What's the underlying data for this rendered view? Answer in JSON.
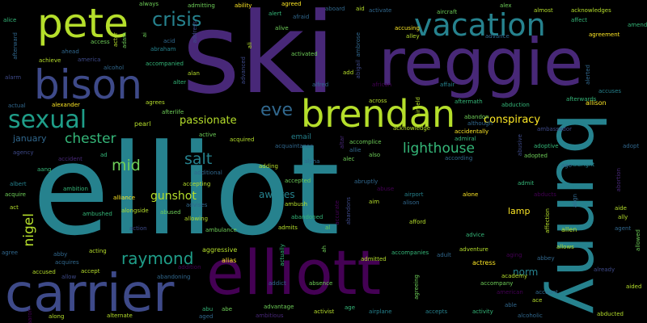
{
  "colors": {
    "background": "#000000",
    "palette": [
      "#440154",
      "#482878",
      "#3e4a89",
      "#31688e",
      "#26828e",
      "#1f9e89",
      "#35b779",
      "#6ece58",
      "#b5de2b",
      "#fde725"
    ]
  },
  "words": {
    "elliot": "elliot",
    "ski": "ski",
    "reggie": "reggie",
    "bunny": "bunny",
    "elliott": "elliott",
    "carrier": "carrier",
    "bison": "bison",
    "pete": "pete",
    "brendan": "brendan",
    "vacation": "vacation",
    "sexual": "sexual",
    "crisis": "crisis",
    "eve": "eve",
    "raymond": "raymond",
    "lighthouse": "lighthouse",
    "chester": "chester",
    "salt": "salt",
    "mid": "mid",
    "nigel": "nigel",
    "conspiracy": "conspiracy",
    "passionate": "passionate",
    "gunshot": "gunshot",
    "january": "january",
    "awakes": "awakes",
    "lamp": "lamp",
    "norm": "norm",
    "alice": "alice",
    "access": "access",
    "ahead": "ahead",
    "achieve": "achieve",
    "alarm": "alarm",
    "actual": "actual",
    "alexander": "alexander",
    "agrees": "agrees",
    "afterlife": "afterlife",
    "pearl": "pearl",
    "active": "active",
    "acquired": "acquired",
    "email": "email",
    "acquaintance": "acquaintance",
    "accomplice": "accomplice",
    "allie": "allie",
    "alec": "alec",
    "alpha": "alpha",
    "agency": "agency",
    "accident": "accident",
    "ad": "ad",
    "additional": "additional",
    "adding": "adding",
    "accepted": "accepted",
    "aang": "aang",
    "albert": "albert",
    "acquire": "acquire",
    "act": "act",
    "ambition": "ambition",
    "alliance": "alliance",
    "alongside": "alongside",
    "ambushed": "ambushed",
    "accepting": "accepting",
    "advises": "advises",
    "abused": "abused",
    "allowing": "allowing",
    "action": "action",
    "ambulance": "ambulance",
    "admits": "admits",
    "al": "al",
    "abandoned": "abandoned",
    "ambush": "ambush",
    "agree": "agree",
    "abby": "abby",
    "acting": "acting",
    "acquires": "acquires",
    "accused": "accused",
    "allow": "allow",
    "accept": "accept",
    "addition": "addition",
    "abandoning": "abandoning",
    "aggressive": "aggressive",
    "alias": "alias",
    "addict": "addict",
    "absence": "absence",
    "aboard": "aboard",
    "aid": "aid",
    "activate": "activate",
    "aircraft": "aircraft",
    "alex": "alex",
    "almost": "almost",
    "acknowledges": "acknowledges",
    "affect": "affect",
    "amends": "amends",
    "agreement": "agreement",
    "always": "always",
    "admitting": "admitting",
    "ability": "ability",
    "agreed": "agreed",
    "alert": "alert",
    "afraid": "afraid",
    "alive": "alive",
    "acid": "acid",
    "abraham": "abraham",
    "alan": "alan",
    "alter": "alter",
    "accompanied": "accompanied",
    "america": "america",
    "alcohol": "alcohol",
    "activated": "activated",
    "alfred": "alfred",
    "add": "add",
    "accusing": "accusing",
    "alley": "alley",
    "advance": "advance",
    "african": "african",
    "affair": "affair",
    "aftermath": "aftermath",
    "abduction": "abduction",
    "accuses": "accuses",
    "allison": "allison",
    "across": "across",
    "acknowledge": "acknowledge",
    "abandon": "abandon",
    "although": "although",
    "accidentally": "accidentally",
    "according": "according",
    "admiral": "admiral",
    "ambassador": "ambassador",
    "adoptive": "adoptive",
    "adopt": "adopt",
    "adopted": "adopted",
    "also": "also",
    "abuse": "abuse",
    "abruptly": "abruptly",
    "aim": "aim",
    "airport": "airport",
    "alison": "alison",
    "afford": "afford",
    "advice": "advice",
    "alone": "alone",
    "admit": "admit",
    "alamein": "alamein",
    "albright": "albright",
    "aide": "aide",
    "ally": "ally",
    "agent": "agent",
    "ago": "ago",
    "allen": "allen",
    "allows": "allows",
    "abbey": "abbey",
    "already": "already",
    "aided": "aided",
    "abducted": "abducted",
    "account": "account",
    "ace": "ace",
    "able": "able",
    "alcoholic": "alcoholic",
    "actress": "actress",
    "academy": "academy",
    "accompany": "accompany",
    "american": "american",
    "adult": "adult",
    "adventure": "adventure",
    "aging": "aging",
    "accompanies": "accompanies",
    "admitted": "admitted",
    "advantage": "advantage",
    "ambitious": "ambitious",
    "activist": "activist",
    "age": "age",
    "airplane": "airplane",
    "accepts": "accepts",
    "activity": "activity",
    "abu": "abu",
    "aged": "aged",
    "abe": "abe",
    "along": "along",
    "alternate": "alternate",
    "actor": "actor",
    "adam": "adam",
    "address": "address",
    "afterward": "afterward",
    "affection": "affection",
    "alerted": "alerted",
    "afterwards": "afterwards",
    "allowed": "allowed",
    "abortion": "abortion",
    "abducts": "abducts",
    "abusive": "abusive",
    "align": "align",
    "altar": "altar",
    "airfield": "airfield",
    "ambrose": "ambrose",
    "abigail": "abigail",
    "accurate": "accurate",
    "advanced": "advanced",
    "actually": "actually",
    "ah": "ah",
    "agreeing": "agreeing",
    "aaron": "aaron",
    "ali": "ali",
    "abandons": "abandons",
    "ai": "ai"
  }
}
